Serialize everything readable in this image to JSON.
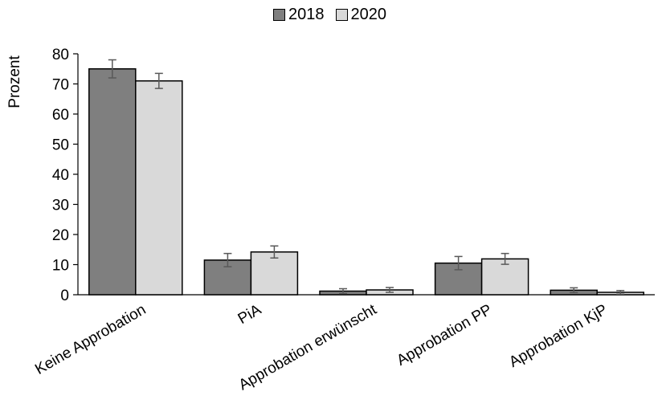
{
  "chart_data": {
    "type": "bar",
    "title": "",
    "xlabel": "",
    "ylabel": "Prozent",
    "ylim": [
      0,
      80
    ],
    "yticks": [
      "0",
      "10",
      "20",
      "30",
      "40",
      "50",
      "60",
      "70",
      "80"
    ],
    "categories": [
      "Keine Approbation",
      "PiA",
      "Approbation erwünscht",
      "Approbation PP",
      "Approbation KjP"
    ],
    "series": [
      {
        "name": "2018",
        "color": "#7f7f7f",
        "values": [
          75,
          11.5,
          1.2,
          10.5,
          1.5
        ],
        "error": [
          3.0,
          2.2,
          0.8,
          2.2,
          0.8
        ]
      },
      {
        "name": "2020",
        "color": "#d9d9d9",
        "values": [
          71,
          14.2,
          1.6,
          11.9,
          0.8
        ],
        "error": [
          2.5,
          2.0,
          0.8,
          1.8,
          0.6
        ]
      }
    ],
    "legend_position": "top-center",
    "grid": false
  }
}
